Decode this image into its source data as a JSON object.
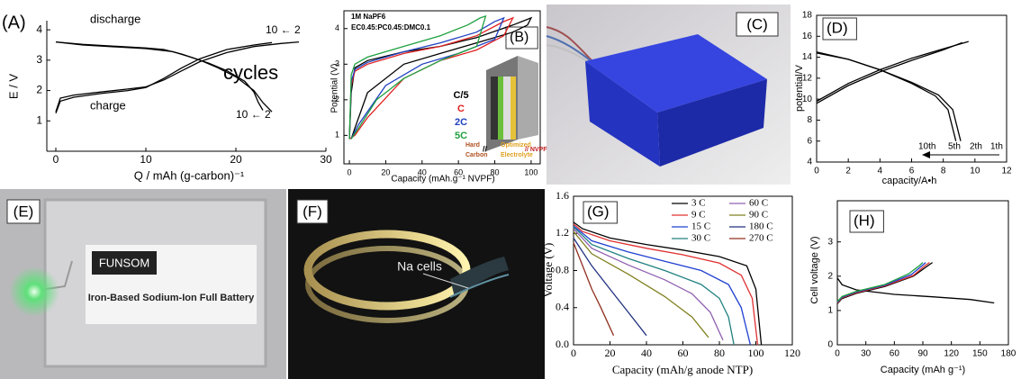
{
  "chart_data": [
    {
      "type": "line",
      "panel_label": "(A)",
      "xlabel": "Q / mAh (g-carbon)⁻¹",
      "ylabel": "E / V",
      "xlim": [
        -1,
        30
      ],
      "ylim": [
        0,
        4.3
      ],
      "xticks": [
        0,
        10,
        20,
        30
      ],
      "yticks": [
        1,
        2,
        3,
        4
      ],
      "annotations": [
        "discharge",
        "charge",
        "10 ← 2",
        "10 ← 2",
        "cycles"
      ],
      "series": [
        {
          "color": "#000000",
          "x": [
            0,
            3,
            6,
            10,
            12,
            14,
            16,
            18,
            20,
            22,
            23,
            24
          ],
          "values": [
            3.6,
            3.52,
            3.47,
            3.4,
            3.35,
            3.2,
            3.0,
            2.75,
            2.45,
            2.0,
            1.6,
            1.3
          ]
        },
        {
          "color": "#000000",
          "x": [
            0,
            3,
            6,
            10,
            13,
            15,
            17,
            19,
            21,
            22,
            22.5,
            23
          ],
          "values": [
            3.6,
            3.5,
            3.45,
            3.38,
            3.28,
            3.1,
            2.9,
            2.65,
            2.3,
            1.95,
            1.6,
            1.35
          ]
        },
        {
          "color": "#000000",
          "x": [
            0,
            0.5,
            2,
            5,
            8,
            10,
            12,
            14,
            16,
            19,
            22,
            25,
            27
          ],
          "values": [
            1.3,
            1.75,
            1.85,
            1.95,
            2.05,
            2.12,
            2.35,
            2.65,
            2.95,
            3.25,
            3.45,
            3.55,
            3.6
          ]
        },
        {
          "color": "#000000",
          "x": [
            0,
            0.5,
            2,
            5,
            8,
            10,
            12,
            14,
            16,
            19,
            22,
            24
          ],
          "values": [
            1.25,
            1.65,
            1.78,
            1.9,
            2.0,
            2.1,
            2.4,
            2.75,
            3.05,
            3.35,
            3.5,
            3.58
          ]
        }
      ]
    },
    {
      "type": "line",
      "panel_label": "(B)",
      "xlabel": "Capacity (mAh.g⁻¹ NVPF)",
      "ylabel": "Potential (V)",
      "xlim": [
        -3,
        105
      ],
      "ylim": [
        0.2,
        4.5
      ],
      "xticks": [
        0,
        20,
        40,
        60,
        80,
        100
      ],
      "yticks": [
        1,
        2,
        3,
        4
      ],
      "annotations": [
        "1M NaPF6",
        "EC0.45:PC0.45:DMC0.1",
        "Hard",
        "Carbon",
        "//",
        "Optimized",
        "Electrolyte",
        "// NVPF"
      ],
      "series": [
        {
          "name": "C/5",
          "color": "#000000",
          "x": [
            0,
            1,
            3,
            10,
            30,
            50,
            70,
            90,
            100,
            98,
            90,
            70,
            50,
            30,
            10,
            3,
            1
          ],
          "values": [
            0.9,
            2.2,
            2.9,
            3.1,
            3.35,
            3.5,
            3.75,
            4.1,
            4.3,
            4.1,
            3.9,
            3.6,
            3.3,
            3.0,
            2.2,
            1.2,
            0.9
          ]
        },
        {
          "name": "C",
          "color": "#e02020",
          "x": [
            0,
            1,
            3,
            10,
            30,
            50,
            70,
            85,
            90,
            85,
            70,
            50,
            30,
            10,
            3,
            0
          ],
          "values": [
            0.9,
            2.4,
            2.8,
            3.0,
            3.3,
            3.5,
            3.8,
            4.2,
            4.3,
            3.8,
            3.4,
            3.1,
            2.6,
            1.5,
            1.0,
            0.9
          ]
        },
        {
          "name": "2C",
          "color": "#2040c0",
          "x": [
            0,
            1,
            3,
            10,
            30,
            50,
            70,
            80,
            85,
            80,
            60,
            40,
            20,
            5,
            1
          ],
          "values": [
            0.9,
            2.5,
            2.85,
            3.05,
            3.35,
            3.6,
            3.9,
            4.2,
            4.3,
            3.7,
            3.3,
            3.0,
            2.4,
            1.3,
            0.9
          ]
        },
        {
          "name": "5C",
          "color": "#20a040",
          "x": [
            0,
            1,
            3,
            10,
            30,
            50,
            65,
            72,
            75,
            70,
            50,
            30,
            15,
            5,
            1
          ],
          "values": [
            0.9,
            2.7,
            3.0,
            3.2,
            3.5,
            3.8,
            4.1,
            4.3,
            4.35,
            3.5,
            3.1,
            2.6,
            2.0,
            1.2,
            0.9
          ]
        }
      ]
    },
    {
      "type": "line",
      "panel_label": "(D)",
      "xlabel": "capacity/A•h",
      "ylabel": "potential/V",
      "xlim": [
        0,
        12
      ],
      "ylim": [
        4,
        18
      ],
      "xticks": [
        0,
        2,
        4,
        6,
        8,
        10,
        12
      ],
      "yticks": [
        4,
        6,
        8,
        10,
        12,
        14,
        16,
        18
      ],
      "annotations": [
        "10th",
        "5th",
        "2th",
        "1th"
      ],
      "series": [
        {
          "color": "#000000",
          "x": [
            0,
            2,
            4,
            6,
            8,
            9.2
          ],
          "values": [
            9.6,
            11.3,
            12.6,
            13.7,
            14.7,
            15.4
          ]
        },
        {
          "color": "#000000",
          "x": [
            0,
            2,
            4,
            6,
            8,
            9.6
          ],
          "values": [
            9.8,
            11.5,
            12.8,
            13.9,
            14.8,
            15.5
          ]
        },
        {
          "color": "#000000",
          "x": [
            0,
            2,
            4,
            6,
            7.5,
            8.3,
            8.8
          ],
          "values": [
            14.5,
            13.8,
            12.8,
            11.5,
            10.3,
            9.0,
            6.0
          ]
        },
        {
          "color": "#000000",
          "x": [
            0,
            2,
            4,
            6,
            7.7,
            8.6,
            9.1
          ],
          "values": [
            14.4,
            13.8,
            12.8,
            11.6,
            10.4,
            9.0,
            6.0
          ]
        }
      ]
    },
    {
      "type": "line",
      "panel_label": "(G)",
      "xlabel": "Capacity (mAh/g anode NTP)",
      "ylabel": "Voltage (V)",
      "xlim": [
        0,
        120
      ],
      "ylim": [
        0,
        1.6
      ],
      "xticks": [
        0,
        20,
        40,
        60,
        80,
        100,
        120
      ],
      "yticks": [
        {
          "value": 0,
          "label": "0.0"
        },
        0.4,
        0.8,
        1.2,
        1.6
      ],
      "annotations": [],
      "series": [
        {
          "name": "3 C",
          "color": "#000000",
          "x": [
            0,
            5,
            20,
            40,
            60,
            80,
            95,
            100,
            103
          ],
          "values": [
            1.32,
            1.25,
            1.15,
            1.08,
            1.02,
            0.95,
            0.85,
            0.6,
            0.0
          ]
        },
        {
          "name": "9 C",
          "color": "#e03030",
          "x": [
            0,
            5,
            20,
            40,
            60,
            80,
            92,
            98,
            101
          ],
          "values": [
            1.3,
            1.22,
            1.12,
            1.04,
            0.97,
            0.88,
            0.75,
            0.5,
            0.0
          ]
        },
        {
          "name": "15 C",
          "color": "#2040d0",
          "x": [
            0,
            10,
            30,
            50,
            70,
            85,
            92,
            97
          ],
          "values": [
            1.28,
            1.12,
            1.0,
            0.9,
            0.8,
            0.65,
            0.4,
            0.0
          ]
        },
        {
          "name": "30 C",
          "color": "#208080",
          "x": [
            0,
            10,
            30,
            50,
            70,
            80,
            85,
            88
          ],
          "values": [
            1.27,
            1.08,
            0.93,
            0.8,
            0.65,
            0.5,
            0.3,
            0.0
          ]
        },
        {
          "name": "60 C",
          "color": "#9060b0",
          "x": [
            0,
            10,
            30,
            50,
            65,
            75,
            82
          ],
          "values": [
            1.25,
            1.04,
            0.86,
            0.7,
            0.55,
            0.35,
            0.05
          ]
        },
        {
          "name": "90 C",
          "color": "#808020",
          "x": [
            0,
            10,
            30,
            50,
            65,
            74
          ],
          "values": [
            1.22,
            0.98,
            0.76,
            0.52,
            0.3,
            0.08
          ]
        },
        {
          "name": "180 C",
          "color": "#203080",
          "x": [
            0,
            10,
            20,
            30,
            40
          ],
          "values": [
            1.15,
            0.85,
            0.6,
            0.35,
            0.1
          ]
        },
        {
          "name": "270 C",
          "color": "#903020",
          "x": [
            0,
            5,
            10,
            15,
            22
          ],
          "values": [
            1.1,
            0.85,
            0.6,
            0.4,
            0.1
          ]
        }
      ]
    },
    {
      "type": "line",
      "panel_label": "(H)",
      "xlabel": "Capacity (mAh g⁻¹)",
      "ylabel": "Cell voltage (V)",
      "xlim": [
        0,
        180
      ],
      "ylim": [
        0,
        4.2
      ],
      "xticks": [
        0,
        30,
        60,
        90,
        120,
        150,
        180
      ],
      "yticks": [
        0,
        1,
        2,
        3
      ],
      "annotations": [],
      "series": [
        {
          "color": "#000000",
          "x": [
            0,
            5,
            20,
            60,
            100,
            140,
            165
          ],
          "values": [
            1.95,
            1.75,
            1.6,
            1.47,
            1.4,
            1.32,
            1.22
          ]
        },
        {
          "color": "#000000",
          "x": [
            0,
            5,
            20,
            50,
            80,
            95,
            100
          ],
          "values": [
            1.2,
            1.35,
            1.5,
            1.7,
            2.0,
            2.3,
            2.4
          ]
        },
        {
          "color": "#e03030",
          "x": [
            0,
            5,
            20,
            50,
            80,
            92,
            97
          ],
          "values": [
            1.22,
            1.37,
            1.52,
            1.72,
            2.02,
            2.3,
            2.4
          ]
        },
        {
          "color": "#2040d0",
          "x": [
            0,
            5,
            20,
            50,
            78,
            89,
            93
          ],
          "values": [
            1.24,
            1.39,
            1.54,
            1.74,
            2.05,
            2.3,
            2.4
          ]
        },
        {
          "color": "#20a040",
          "x": [
            0,
            5,
            20,
            50,
            75,
            86,
            90
          ],
          "values": [
            1.26,
            1.41,
            1.56,
            1.76,
            2.07,
            2.3,
            2.4
          ]
        }
      ]
    }
  ],
  "photos": [
    {
      "label": "(C)"
    },
    {
      "label": "(E)",
      "texts": [
        "FUNSOM",
        "Iron-Based Sodium-Ion Full Battery"
      ]
    },
    {
      "label": "(F)",
      "texts": [
        "Na cells"
      ]
    }
  ]
}
